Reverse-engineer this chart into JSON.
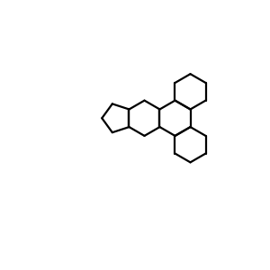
{
  "bg": "#ffffff",
  "bc": "#000000",
  "oc": "#ff0000",
  "lw": 1.6,
  "figsize": [
    3.0,
    3.0
  ],
  "dpi": 100,
  "xlim": [
    0,
    10
  ],
  "ylim": [
    0,
    10
  ]
}
